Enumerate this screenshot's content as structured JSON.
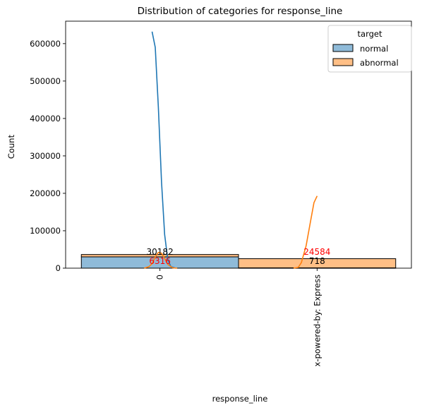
{
  "chart_data": {
    "type": "bar",
    "title": "Distribution of categories for response_line",
    "xlabel": "response_line",
    "ylabel": "Count",
    "categories": [
      "0",
      "x-powered-by: Express"
    ],
    "ylim": [
      0,
      660000
    ],
    "yticks": [
      0,
      100000,
      200000,
      300000,
      400000,
      500000,
      600000
    ],
    "legend": {
      "title": "target",
      "placement": "top-right"
    },
    "series": [
      {
        "name": "normal",
        "color": "#1f77b4",
        "values": [
          30182,
          718
        ],
        "label_color": "#000000"
      },
      {
        "name": "abnormal",
        "color": "#ff7f0e",
        "values": [
          6316,
          24584
        ],
        "label_color": "#ff0000"
      }
    ],
    "kde": [
      {
        "series": "normal",
        "color": "#1f77b4",
        "points": [
          [
            -0.05,
            632000
          ],
          [
            -0.03,
            590000
          ],
          [
            -0.01,
            430000
          ],
          [
            0.01,
            230000
          ],
          [
            0.03,
            90000
          ],
          [
            0.05,
            22000
          ],
          [
            0.07,
            4000
          ],
          [
            0.1,
            0
          ]
        ]
      },
      {
        "series": "abnormal",
        "color": "#ff7f0e",
        "points": [
          [
            -0.1,
            0
          ],
          [
            -0.07,
            4000
          ],
          [
            -0.05,
            12000
          ],
          [
            -0.03,
            30000
          ],
          [
            -0.01,
            42000
          ],
          [
            0.01,
            40000
          ],
          [
            0.03,
            26000
          ],
          [
            0.05,
            10000
          ],
          [
            0.08,
            1000
          ],
          [
            0.11,
            0
          ]
        ]
      },
      {
        "series": "abnormal",
        "color": "#ff7f0e",
        "points": [
          [
            0.85,
            0
          ],
          [
            0.88,
            2000
          ],
          [
            0.9,
            15000
          ],
          [
            0.93,
            60000
          ],
          [
            0.96,
            130000
          ],
          [
            0.98,
            175000
          ],
          [
            1.0,
            193000
          ]
        ]
      }
    ]
  }
}
